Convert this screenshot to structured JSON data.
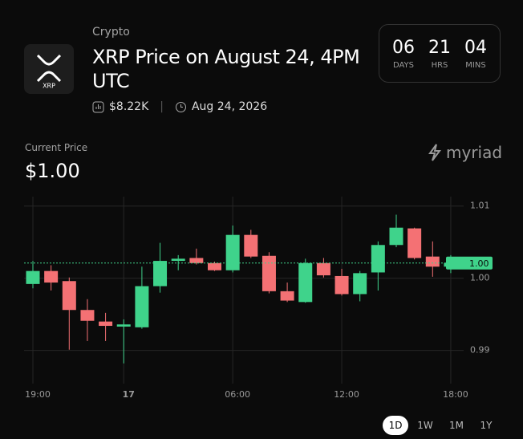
{
  "header": {
    "category": "Crypto",
    "title": "XRP Price on August 24, 4PM UTC",
    "logo_label": "XRP",
    "volume": "$8.22K",
    "date": "Aug 24, 2026"
  },
  "countdown": [
    {
      "value": "06",
      "unit": "DAYS"
    },
    {
      "value": "21",
      "unit": "HRS"
    },
    {
      "value": "04",
      "unit": "MINS"
    }
  ],
  "current_price_label": "Current Price",
  "current_price": "$1.00",
  "brand": "myriad",
  "ranges": [
    "1D",
    "1W",
    "1M",
    "1Y"
  ],
  "selected_range": "1D",
  "chart_data": {
    "type": "candlestick",
    "categories": [
      "19:00",
      null,
      null,
      null,
      null,
      "17",
      null,
      null,
      null,
      null,
      null,
      "06:00",
      null,
      null,
      null,
      null,
      null,
      "12:00",
      null,
      null,
      null,
      null,
      null,
      "18:00"
    ],
    "open": [
      0.9992,
      1.001,
      0.9996,
      0.9956,
      0.994,
      0.9933,
      0.9932,
      0.9989,
      1.0024,
      1.0028,
      1.0021,
      1.0011,
      1.006,
      1.0031,
      0.9982,
      0.9967,
      1.0021,
      1.0003,
      0.9978,
      1.0008,
      1.0046,
      1.0069,
      1.003,
      1.0016
    ],
    "high": [
      1.0024,
      1.0018,
      1.0001,
      0.9971,
      0.9952,
      0.9943,
      1.0016,
      1.0049,
      1.0032,
      1.0041,
      1.0023,
      1.0073,
      1.0067,
      1.0036,
      0.9994,
      1.0027,
      1.0028,
      1.0013,
      1.001,
      1.0051,
      1.0088,
      1.007,
      1.0051,
      1.0032
    ],
    "low": [
      0.9986,
      0.9983,
      0.9901,
      0.9913,
      0.9913,
      0.9882,
      0.993,
      0.998,
      1.0011,
      1.0019,
      1.001,
      1.0008,
      1.0028,
      0.9979,
      0.9967,
      0.9966,
      1.0001,
      0.9976,
      0.9968,
      0.9983,
      1.0043,
      1.0026,
      1.0002,
      1.0007
    ],
    "close": [
      1.001,
      0.9994,
      0.9956,
      0.9941,
      0.9934,
      0.9936,
      0.9989,
      1.0024,
      1.0027,
      1.0021,
      1.0011,
      1.006,
      1.003,
      0.9982,
      0.9969,
      1.0021,
      1.0004,
      0.9978,
      1.0007,
      1.0046,
      1.007,
      1.0028,
      1.0016,
      1.0021
    ],
    "up_color": "#3fd38b",
    "down_color": "#f47174",
    "current_price": {
      "value": 1.0021,
      "label": "1.00"
    },
    "ylim": [
      0.9854,
      1.0113
    ],
    "yticks": [
      0.99,
      {
        "value": 1,
        "label": "1.00"
      },
      1.01
    ],
    "grid": true
  }
}
